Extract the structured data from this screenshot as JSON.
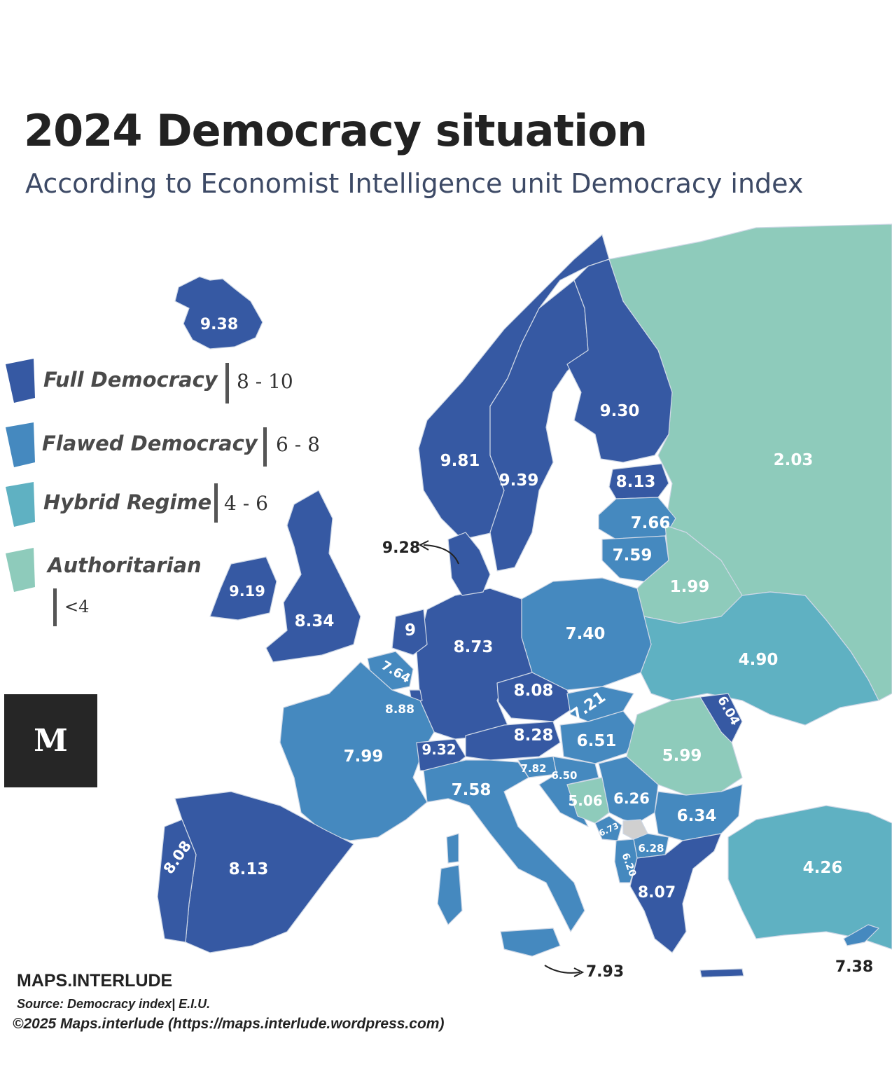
{
  "title": "2024 Democracy situation",
  "subtitle": "According to Economist Intelligence unit Democracy index",
  "colors": {
    "full_democracy": "#3659a3",
    "flawed_democracy": "#4589bf",
    "hybrid_regime": "#5fb1c2",
    "authoritarian": "#8ecbbb",
    "no_data": "#d0d0d0"
  },
  "legend": [
    {
      "label": "Full Democracy",
      "range": "8 - 10"
    },
    {
      "label": "Flawed Democracy",
      "range": "6 - 8"
    },
    {
      "label": "Hybrid Regime",
      "range": "4 - 6"
    },
    {
      "label": "Authoritarian",
      "range": "<4"
    }
  ],
  "values": {
    "iceland": "9.38",
    "norway": "9.81",
    "sweden": "9.39",
    "finland": "9.30",
    "russia": "2.03",
    "estonia": "8.13",
    "latvia": "7.66",
    "lithuania": "7.59",
    "denmark": "9.28",
    "ireland": "9.19",
    "uk": "8.34",
    "netherlands": "9",
    "germany": "8.73",
    "poland": "7.40",
    "belarus": "1.99",
    "ukraine": "4.90",
    "belgium": "7.64",
    "luxembourg": "8.88",
    "czechia": "8.08",
    "slovakia": "7.21",
    "moldova": "6.04",
    "france": "7.99",
    "switzerland": "9.32",
    "austria": "8.28",
    "hungary": "6.51",
    "romania": "5.99",
    "slovenia": "7.82",
    "croatia": "6.50",
    "italy": "7.58",
    "bosnia": "5.06",
    "serbia": "6.26",
    "bulgaria": "6.34",
    "montenegro": "6.73",
    "north_macedonia": "6.28",
    "albania": "6.20",
    "greece": "8.07",
    "portugal": "8.08",
    "spain": "8.13",
    "turkey": "4.26",
    "malta": "7.93",
    "cyprus": "7.38"
  },
  "logo": "M",
  "brand": "MAPS.INTERLUDE",
  "source": "Source: Democracy index| E.I.U.",
  "copyright": "©2025 Maps.interlude (https://maps.interlude.wordpress.com)"
}
